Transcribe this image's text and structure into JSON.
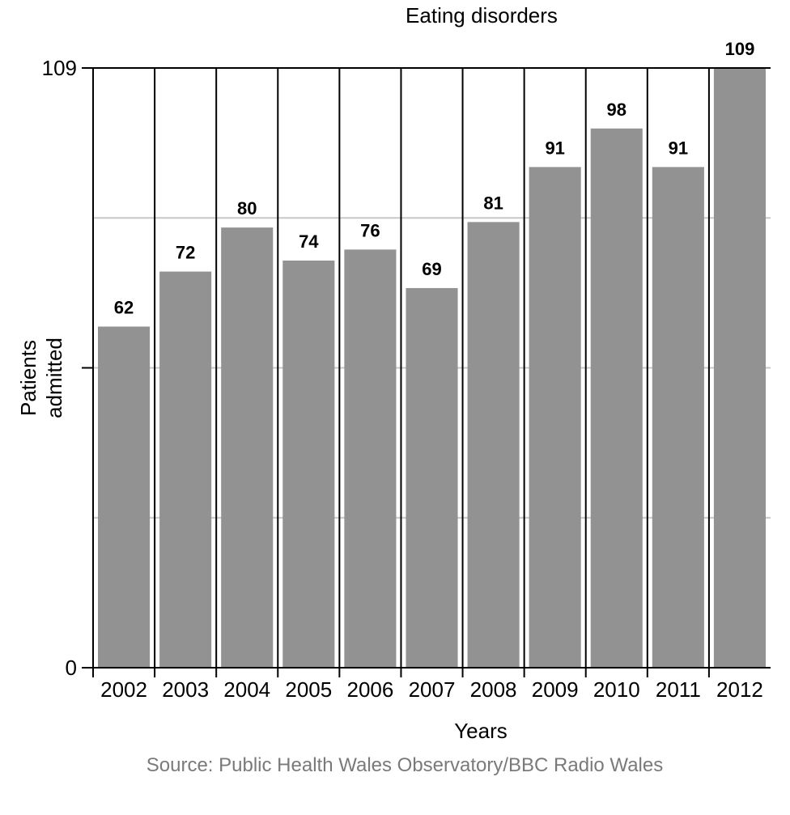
{
  "chart_data": {
    "type": "bar",
    "title": "Eating disorders",
    "xlabel": "Years",
    "ylabel_lines": [
      "Patients",
      "admitted"
    ],
    "categories": [
      "2002",
      "2003",
      "2004",
      "2005",
      "2006",
      "2007",
      "2008",
      "2009",
      "2010",
      "2011",
      "2012"
    ],
    "values": [
      62,
      72,
      80,
      74,
      76,
      69,
      81,
      91,
      98,
      91,
      109
    ],
    "ylim": [
      0,
      109
    ],
    "yticks": [
      0,
      109
    ],
    "grid": true,
    "colors": {
      "bar": "#929292",
      "gridline": "#c8c8c8",
      "axis": "#000000"
    },
    "source": "Source: Public Health Wales Observatory/BBC Radio Wales"
  }
}
